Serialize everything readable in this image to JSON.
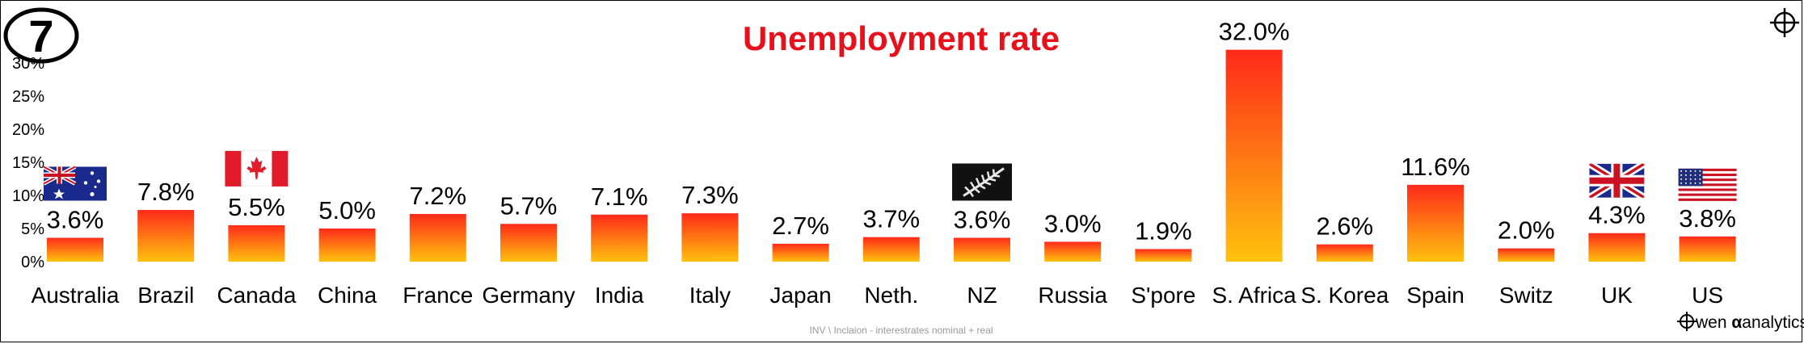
{
  "badge": "7",
  "footer": "INV \\ Inclaion - interestrates nominal + real",
  "brand": {
    "prefix": "wen ",
    "alpha": "α",
    "suffix": "analytics"
  },
  "chart_data": {
    "type": "bar",
    "title": "Unemployment rate",
    "categories": [
      "Australia",
      "Brazil",
      "Canada",
      "China",
      "France",
      "Germany",
      "India",
      "Italy",
      "Japan",
      "Neth.",
      "NZ",
      "Russia",
      "S'pore",
      "S. Africa",
      "S. Korea",
      "Spain",
      "Switz",
      "UK",
      "US"
    ],
    "values": [
      3.6,
      7.8,
      5.5,
      5.0,
      7.2,
      5.7,
      7.1,
      7.3,
      2.7,
      3.7,
      3.6,
      3.0,
      1.9,
      32.0,
      2.6,
      11.6,
      2.0,
      4.3,
      3.8
    ],
    "value_labels": [
      "3.6%",
      "7.8%",
      "5.5%",
      "5.0%",
      "7.2%",
      "5.7%",
      "7.1%",
      "7.3%",
      "2.7%",
      "3.7%",
      "3.6%",
      "3.0%",
      "1.9%",
      "32.0%",
      "2.6%",
      "11.6%",
      "2.0%",
      "4.3%",
      "3.8%"
    ],
    "yticks": [
      "0%",
      "5%",
      "10%",
      "15%",
      "20%",
      "25%",
      "30%"
    ],
    "ylim": [
      0,
      30
    ],
    "grid": false,
    "colors": {
      "title": "#e8101a",
      "bar_top": "#ff2a1a",
      "bar_bottom": "#ffc20e"
    },
    "flags": [
      "Australia",
      "Canada",
      "NZ",
      "UK",
      "US"
    ]
  }
}
